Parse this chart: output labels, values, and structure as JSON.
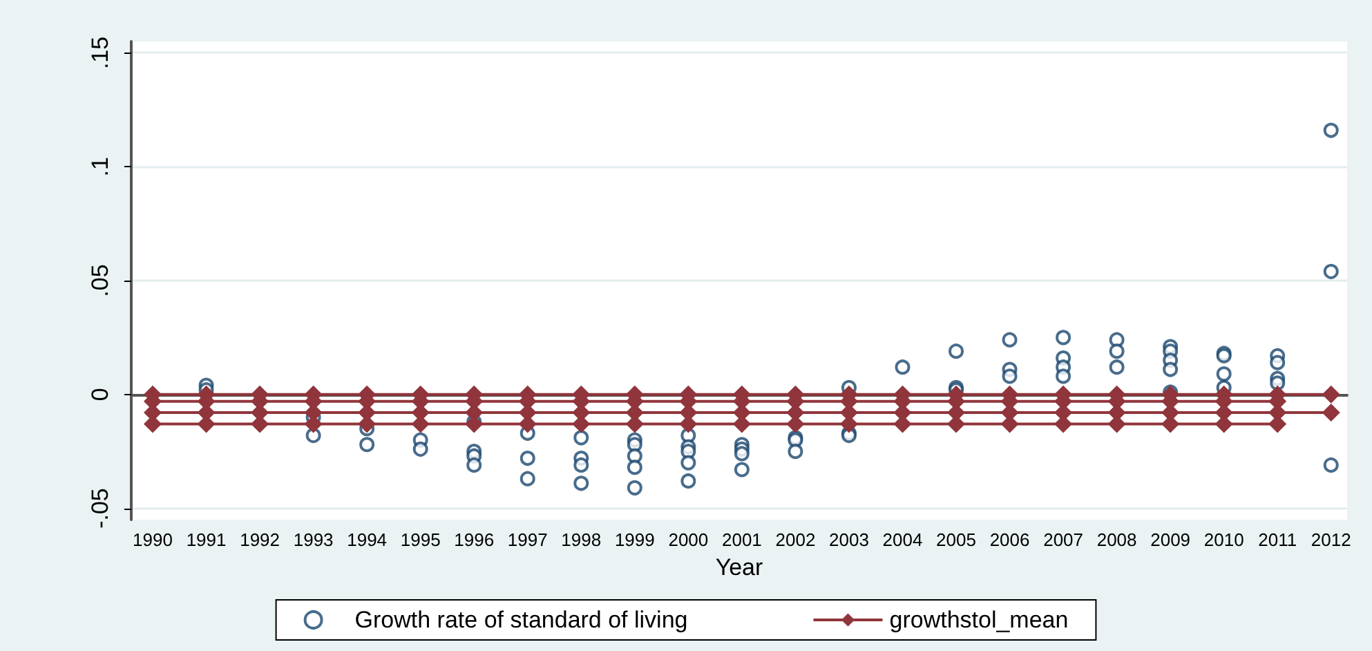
{
  "chart_data": {
    "type": "scatter",
    "xlabel": "Year",
    "xlim": [
      1989.6,
      2012.3
    ],
    "xticks": [
      1990,
      1991,
      1992,
      1993,
      1994,
      1995,
      1996,
      1997,
      1998,
      1999,
      2000,
      2001,
      2002,
      2003,
      2004,
      2005,
      2006,
      2007,
      2008,
      2009,
      2010,
      2011,
      2012
    ],
    "ylim": [
      -0.055,
      0.155
    ],
    "yticks": [
      {
        "value": -0.05,
        "label": "-.05"
      },
      {
        "value": 0,
        "label": "0"
      },
      {
        "value": 0.05,
        "label": ".05"
      },
      {
        "value": 0.1,
        "label": ".1"
      },
      {
        "value": 0.15,
        "label": ".15"
      }
    ],
    "grid": "y",
    "legend": "bottom",
    "series": [
      {
        "name": "Growth rate of standard of living",
        "marker": "circle",
        "color": "#1a476f",
        "x": [
          1991,
          1991,
          1993,
          1993,
          1994,
          1994,
          1995,
          1995,
          1996,
          1996,
          1996,
          1996,
          1997,
          1997,
          1997,
          1998,
          1998,
          1998,
          1998,
          1999,
          1999,
          1999,
          1999,
          1999,
          2000,
          2000,
          2000,
          2000,
          2000,
          2001,
          2001,
          2001,
          2001,
          2002,
          2002,
          2002,
          2003,
          2003,
          2003,
          2004,
          2005,
          2005,
          2005,
          2006,
          2006,
          2006,
          2007,
          2007,
          2007,
          2007,
          2008,
          2008,
          2008,
          2009,
          2009,
          2009,
          2009,
          2009,
          2010,
          2010,
          2010,
          2010,
          2011,
          2011,
          2011,
          2011,
          2012,
          2012,
          2012
        ],
        "values": [
          0.004,
          0.002,
          -0.018,
          -0.01,
          -0.022,
          -0.015,
          -0.02,
          -0.024,
          -0.025,
          -0.027,
          -0.031,
          -0.012,
          -0.017,
          -0.028,
          -0.037,
          -0.019,
          -0.028,
          -0.031,
          -0.039,
          -0.02,
          -0.022,
          -0.027,
          -0.032,
          -0.041,
          -0.018,
          -0.023,
          -0.025,
          -0.03,
          -0.038,
          -0.022,
          -0.024,
          -0.026,
          -0.033,
          -0.019,
          -0.02,
          -0.025,
          0.003,
          -0.017,
          -0.018,
          0.012,
          0.019,
          0.003,
          0.002,
          0.024,
          0.011,
          0.008,
          0.025,
          0.016,
          0.012,
          0.008,
          0.024,
          0.019,
          0.012,
          0.021,
          0.019,
          0.015,
          0.011,
          0.001,
          0.018,
          0.017,
          0.009,
          0.003,
          0.017,
          0.014,
          0.007,
          0.005,
          0.116,
          0.054,
          -0.031
        ]
      },
      {
        "name": "growthstol_mean",
        "type": "line",
        "marker": "diamond",
        "line_style": "solid",
        "color": "#90353b",
        "x": [
          1990,
          1991,
          1992,
          1993,
          1994,
          1995,
          1996,
          1997,
          1998,
          1999,
          2000,
          2001,
          2002,
          2003,
          2004,
          2005,
          2006,
          2007,
          2008,
          2009,
          2010,
          2011,
          2012
        ],
        "values": [
          0,
          0,
          0,
          0,
          0,
          0,
          0,
          0,
          0,
          0,
          0,
          0,
          0,
          0,
          0,
          0,
          0,
          0,
          0,
          0,
          0,
          0,
          0
        ]
      },
      {
        "type": "line",
        "marker": "diamond",
        "line_style": "solid",
        "color": "#90353b",
        "x": [
          1990,
          1991,
          1992,
          1993,
          1994,
          1995,
          1996,
          1997,
          1998,
          1999,
          2000,
          2001,
          2002,
          2003,
          2004,
          2005,
          2006,
          2007,
          2008,
          2009,
          2010,
          2011
        ],
        "values": [
          -0.003,
          -0.003,
          -0.003,
          -0.003,
          -0.003,
          -0.003,
          -0.003,
          -0.003,
          -0.003,
          -0.003,
          -0.003,
          -0.003,
          -0.003,
          -0.003,
          -0.003,
          -0.003,
          -0.003,
          -0.003,
          -0.003,
          -0.003,
          -0.003,
          -0.003
        ]
      },
      {
        "type": "line",
        "marker": "diamond",
        "line_style": "solid",
        "color": "#90353b",
        "x": [
          1990,
          1991,
          1992,
          1993,
          1994,
          1995,
          1996,
          1997,
          1998,
          1999,
          2000,
          2001,
          2002,
          2003,
          2004,
          2005,
          2006,
          2007,
          2008,
          2009,
          2010,
          2011,
          2012
        ],
        "values": [
          -0.008,
          -0.008,
          -0.008,
          -0.008,
          -0.008,
          -0.008,
          -0.008,
          -0.008,
          -0.008,
          -0.008,
          -0.008,
          -0.008,
          -0.008,
          -0.008,
          -0.008,
          -0.008,
          -0.008,
          -0.008,
          -0.008,
          -0.008,
          -0.008,
          -0.008,
          -0.008
        ]
      },
      {
        "type": "line",
        "marker": "diamond",
        "line_style": "solid",
        "color": "#90353b",
        "x": [
          1990,
          1991,
          1992,
          1993,
          1994,
          1995,
          1996,
          1997,
          1998,
          1999,
          2000,
          2001,
          2002,
          2003,
          2004,
          2005,
          2006,
          2007,
          2008,
          2009,
          2010,
          2011
        ],
        "values": [
          -0.013,
          -0.013,
          -0.013,
          -0.013,
          -0.013,
          -0.013,
          -0.013,
          -0.013,
          -0.013,
          -0.013,
          -0.013,
          -0.013,
          -0.013,
          -0.013,
          -0.013,
          -0.013,
          -0.013,
          -0.013,
          -0.013,
          -0.013,
          -0.013,
          -0.013
        ]
      }
    ]
  }
}
